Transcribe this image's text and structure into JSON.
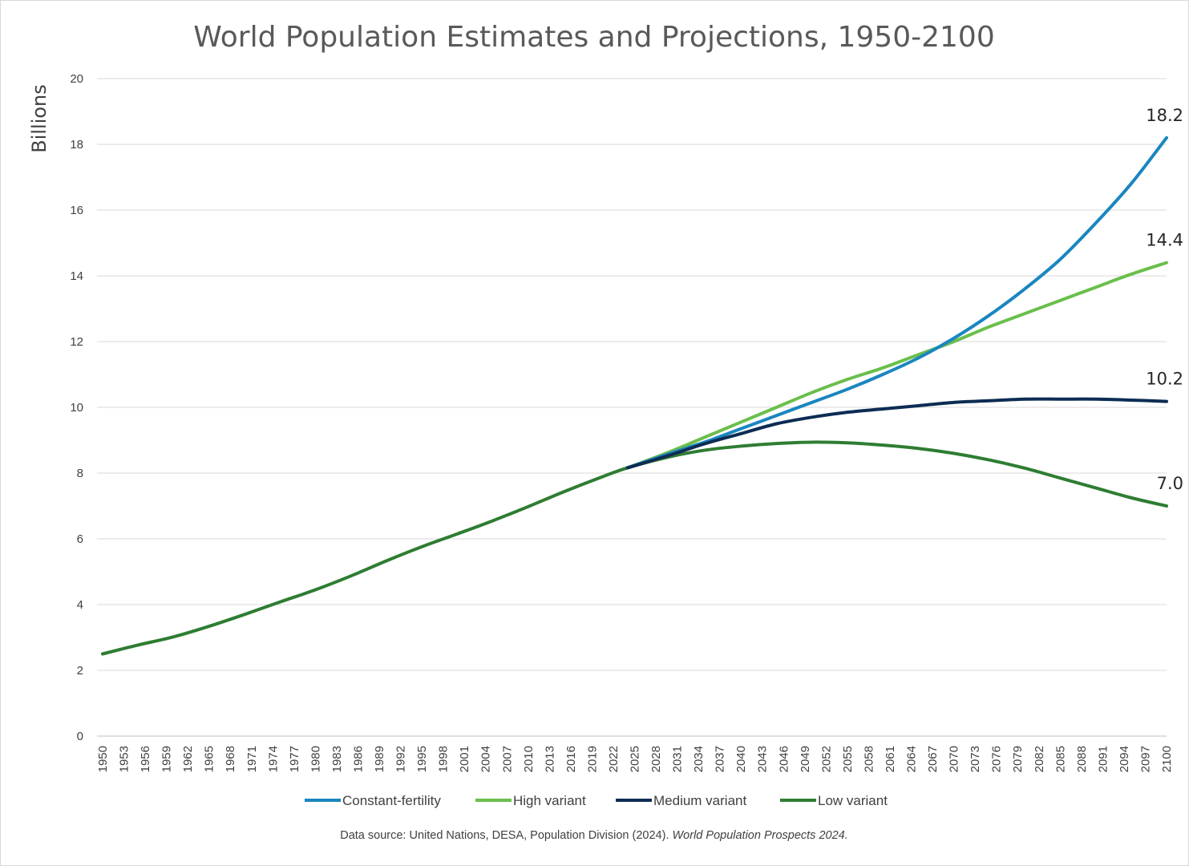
{
  "chart_data": {
    "type": "line",
    "title": "World Population Estimates and Projections, 1950-2100",
    "ylabel": "Billions",
    "xlabel": "",
    "xlim": [
      1950,
      2100
    ],
    "ylim": [
      0,
      20
    ],
    "y_ticks": [
      0,
      2,
      4,
      6,
      8,
      10,
      12,
      14,
      16,
      18,
      20
    ],
    "x_tick_start": 1950,
    "x_tick_step": 3,
    "x_ticks": [
      "1950",
      "1953",
      "1956",
      "1959",
      "1962",
      "1965",
      "1968",
      "1971",
      "1974",
      "1977",
      "1980",
      "1983",
      "1986",
      "1989",
      "1992",
      "1995",
      "1998",
      "2001",
      "2004",
      "2007",
      "2010",
      "2013",
      "2016",
      "2019",
      "2022",
      "2025",
      "2028",
      "2031",
      "2034",
      "2037",
      "2040",
      "2043",
      "2046",
      "2049",
      "2052",
      "2055",
      "2058",
      "2061",
      "2064",
      "2067",
      "2070",
      "2073",
      "2076",
      "2079",
      "2082",
      "2085",
      "2088",
      "2091",
      "2094",
      "2097",
      "2100"
    ],
    "grid": true,
    "legend_position": "bottom",
    "series": [
      {
        "name": "Constant-fertility",
        "color": "#1a86c0",
        "end_label": "18.2",
        "points": [
          [
            2024,
            8.16
          ],
          [
            2030,
            8.6
          ],
          [
            2035,
            8.95
          ],
          [
            2040,
            9.35
          ],
          [
            2045,
            9.75
          ],
          [
            2050,
            10.15
          ],
          [
            2055,
            10.55
          ],
          [
            2060,
            11.0
          ],
          [
            2065,
            11.5
          ],
          [
            2070,
            12.1
          ],
          [
            2075,
            12.8
          ],
          [
            2080,
            13.6
          ],
          [
            2085,
            14.5
          ],
          [
            2090,
            15.6
          ],
          [
            2095,
            16.8
          ],
          [
            2100,
            18.2
          ]
        ]
      },
      {
        "name": "High variant",
        "color": "#6abf4b",
        "end_label": "14.4",
        "points": [
          [
            2024,
            8.16
          ],
          [
            2030,
            8.65
          ],
          [
            2035,
            9.1
          ],
          [
            2040,
            9.55
          ],
          [
            2045,
            10.0
          ],
          [
            2050,
            10.45
          ],
          [
            2055,
            10.85
          ],
          [
            2060,
            11.2
          ],
          [
            2065,
            11.6
          ],
          [
            2070,
            12.0
          ],
          [
            2075,
            12.45
          ],
          [
            2080,
            12.85
          ],
          [
            2085,
            13.25
          ],
          [
            2090,
            13.65
          ],
          [
            2095,
            14.05
          ],
          [
            2100,
            14.4
          ]
        ]
      },
      {
        "name": "Medium variant",
        "color": "#0d2c54",
        "end_label": "10.2",
        "points": [
          [
            2024,
            8.16
          ],
          [
            2030,
            8.55
          ],
          [
            2035,
            8.9
          ],
          [
            2040,
            9.2
          ],
          [
            2045,
            9.5
          ],
          [
            2050,
            9.7
          ],
          [
            2055,
            9.85
          ],
          [
            2060,
            9.95
          ],
          [
            2065,
            10.05
          ],
          [
            2070,
            10.15
          ],
          [
            2075,
            10.2
          ],
          [
            2080,
            10.25
          ],
          [
            2085,
            10.25
          ],
          [
            2090,
            10.25
          ],
          [
            2095,
            10.22
          ],
          [
            2100,
            10.18
          ]
        ]
      },
      {
        "name": "Low variant",
        "color": "#2e7d32",
        "end_label": "7.0",
        "points": [
          [
            1950,
            2.5
          ],
          [
            1955,
            2.77
          ],
          [
            1960,
            3.02
          ],
          [
            1965,
            3.34
          ],
          [
            1970,
            3.7
          ],
          [
            1975,
            4.08
          ],
          [
            1980,
            4.45
          ],
          [
            1985,
            4.87
          ],
          [
            1990,
            5.33
          ],
          [
            1995,
            5.76
          ],
          [
            2000,
            6.15
          ],
          [
            2005,
            6.55
          ],
          [
            2010,
            6.98
          ],
          [
            2015,
            7.43
          ],
          [
            2020,
            7.85
          ],
          [
            2024,
            8.16
          ],
          [
            2030,
            8.5
          ],
          [
            2035,
            8.7
          ],
          [
            2040,
            8.82
          ],
          [
            2045,
            8.9
          ],
          [
            2050,
            8.94
          ],
          [
            2055,
            8.92
          ],
          [
            2060,
            8.85
          ],
          [
            2065,
            8.75
          ],
          [
            2070,
            8.6
          ],
          [
            2075,
            8.4
          ],
          [
            2080,
            8.15
          ],
          [
            2085,
            7.85
          ],
          [
            2090,
            7.55
          ],
          [
            2095,
            7.25
          ],
          [
            2100,
            7.0
          ]
        ]
      }
    ],
    "source_prefix": "Data source: United Nations, DESA, Population Division (2024). ",
    "source_italic": "World Population Prospects 2024."
  }
}
